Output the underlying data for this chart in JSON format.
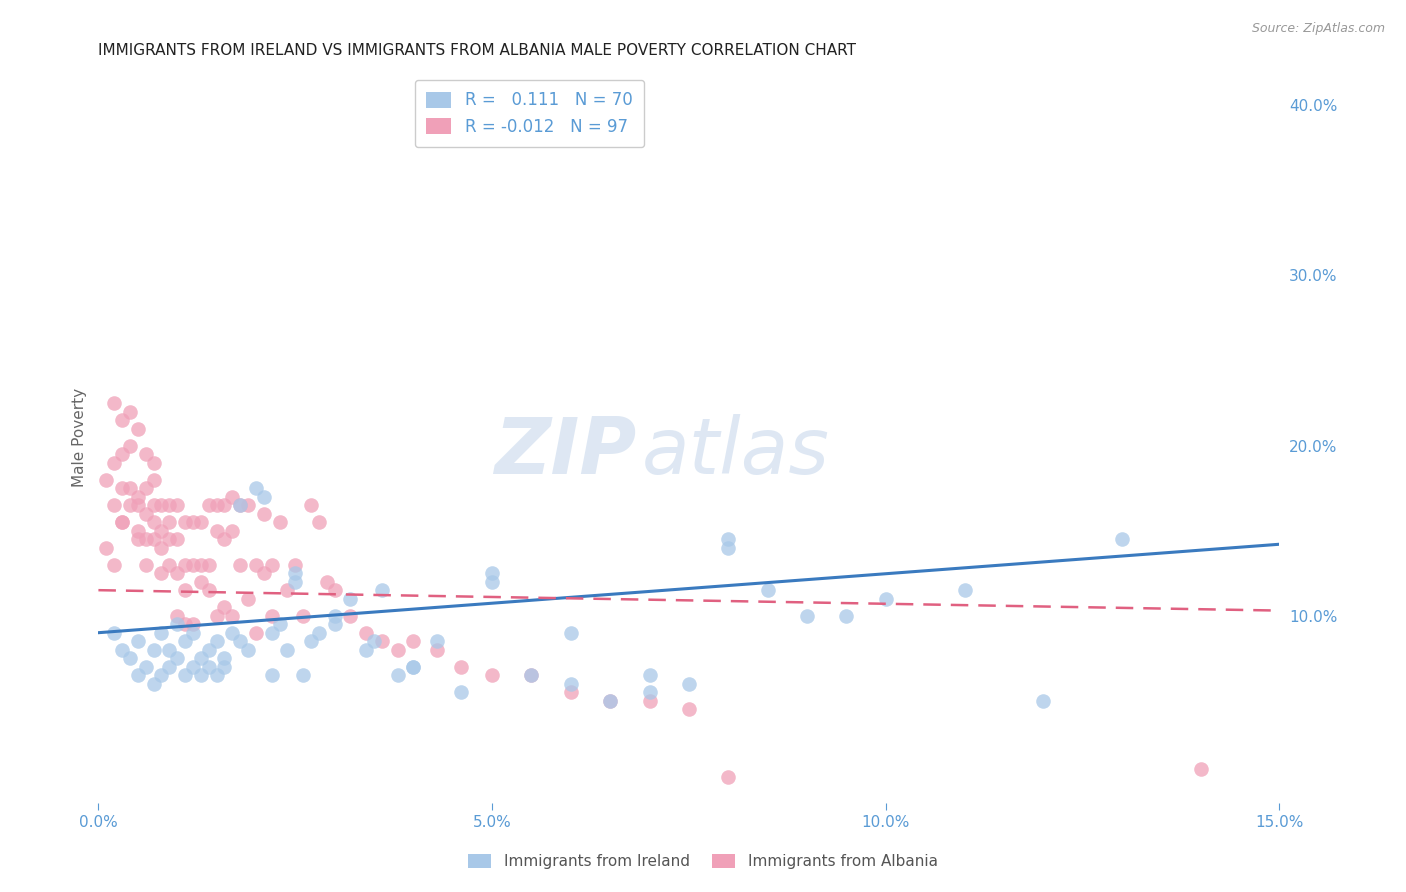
{
  "title": "IMMIGRANTS FROM IRELAND VS IMMIGRANTS FROM ALBANIA MALE POVERTY CORRELATION CHART",
  "source": "Source: ZipAtlas.com",
  "ylabel": "Male Poverty",
  "x_min": 0.0,
  "x_max": 0.15,
  "y_min": -0.01,
  "y_max": 0.42,
  "x_ticks": [
    0.0,
    0.05,
    0.1,
    0.15
  ],
  "x_tick_labels": [
    "0.0%",
    "5.0%",
    "10.0%",
    "15.0%"
  ],
  "y_ticks_right": [
    0.1,
    0.2,
    0.3,
    0.4
  ],
  "y_tick_labels_right": [
    "10.0%",
    "20.0%",
    "30.0%",
    "40.0%"
  ],
  "ireland_color": "#a8c8e8",
  "albania_color": "#f0a0b8",
  "ireland_line_color": "#3a7abf",
  "albania_line_color": "#e06080",
  "ireland_R": 0.111,
  "ireland_N": 70,
  "albania_R": -0.012,
  "albania_N": 97,
  "background_color": "#ffffff",
  "grid_color": "#cccccc",
  "title_color": "#222222",
  "axis_color": "#5a9bd5",
  "watermark_zip": "ZIP",
  "watermark_atlas": "atlas",
  "legend_ireland_label": "Immigrants from Ireland",
  "legend_albania_label": "Immigrants from Albania",
  "ireland_x": [
    0.002,
    0.003,
    0.004,
    0.005,
    0.005,
    0.006,
    0.007,
    0.007,
    0.008,
    0.008,
    0.009,
    0.009,
    0.01,
    0.01,
    0.011,
    0.011,
    0.012,
    0.012,
    0.013,
    0.013,
    0.014,
    0.014,
    0.015,
    0.015,
    0.016,
    0.016,
    0.017,
    0.018,
    0.019,
    0.02,
    0.021,
    0.022,
    0.022,
    0.023,
    0.024,
    0.025,
    0.026,
    0.027,
    0.028,
    0.03,
    0.032,
    0.034,
    0.036,
    0.038,
    0.04,
    0.043,
    0.046,
    0.05,
    0.055,
    0.06,
    0.065,
    0.07,
    0.075,
    0.08,
    0.085,
    0.09,
    0.095,
    0.1,
    0.11,
    0.12,
    0.018,
    0.025,
    0.03,
    0.035,
    0.04,
    0.05,
    0.06,
    0.07,
    0.08,
    0.13
  ],
  "ireland_y": [
    0.09,
    0.08,
    0.075,
    0.085,
    0.065,
    0.07,
    0.06,
    0.08,
    0.065,
    0.09,
    0.07,
    0.08,
    0.075,
    0.095,
    0.065,
    0.085,
    0.07,
    0.09,
    0.065,
    0.075,
    0.07,
    0.08,
    0.065,
    0.085,
    0.07,
    0.075,
    0.09,
    0.085,
    0.08,
    0.175,
    0.17,
    0.065,
    0.09,
    0.095,
    0.08,
    0.12,
    0.065,
    0.085,
    0.09,
    0.095,
    0.11,
    0.08,
    0.115,
    0.065,
    0.07,
    0.085,
    0.055,
    0.12,
    0.065,
    0.06,
    0.05,
    0.055,
    0.06,
    0.14,
    0.115,
    0.1,
    0.1,
    0.11,
    0.115,
    0.05,
    0.165,
    0.125,
    0.1,
    0.085,
    0.07,
    0.125,
    0.09,
    0.065,
    0.145,
    0.145
  ],
  "albania_x": [
    0.001,
    0.001,
    0.002,
    0.002,
    0.002,
    0.003,
    0.003,
    0.003,
    0.003,
    0.004,
    0.004,
    0.004,
    0.005,
    0.005,
    0.005,
    0.005,
    0.006,
    0.006,
    0.006,
    0.006,
    0.007,
    0.007,
    0.007,
    0.007,
    0.008,
    0.008,
    0.008,
    0.008,
    0.009,
    0.009,
    0.009,
    0.009,
    0.01,
    0.01,
    0.01,
    0.01,
    0.011,
    0.011,
    0.011,
    0.011,
    0.012,
    0.012,
    0.012,
    0.013,
    0.013,
    0.013,
    0.014,
    0.014,
    0.014,
    0.015,
    0.015,
    0.015,
    0.016,
    0.016,
    0.016,
    0.017,
    0.017,
    0.017,
    0.018,
    0.018,
    0.019,
    0.019,
    0.02,
    0.02,
    0.021,
    0.021,
    0.022,
    0.022,
    0.023,
    0.024,
    0.025,
    0.026,
    0.027,
    0.028,
    0.029,
    0.03,
    0.032,
    0.034,
    0.036,
    0.038,
    0.04,
    0.043,
    0.046,
    0.05,
    0.055,
    0.06,
    0.065,
    0.07,
    0.075,
    0.08,
    0.002,
    0.003,
    0.004,
    0.005,
    0.006,
    0.007,
    0.14
  ],
  "albania_y": [
    0.14,
    0.18,
    0.13,
    0.165,
    0.19,
    0.155,
    0.175,
    0.155,
    0.195,
    0.165,
    0.2,
    0.175,
    0.145,
    0.17,
    0.15,
    0.165,
    0.13,
    0.16,
    0.145,
    0.175,
    0.145,
    0.165,
    0.155,
    0.18,
    0.125,
    0.15,
    0.165,
    0.14,
    0.13,
    0.155,
    0.145,
    0.165,
    0.1,
    0.125,
    0.145,
    0.165,
    0.095,
    0.115,
    0.13,
    0.155,
    0.095,
    0.13,
    0.155,
    0.12,
    0.13,
    0.155,
    0.115,
    0.13,
    0.165,
    0.1,
    0.15,
    0.165,
    0.105,
    0.145,
    0.165,
    0.1,
    0.15,
    0.17,
    0.13,
    0.165,
    0.11,
    0.165,
    0.09,
    0.13,
    0.125,
    0.16,
    0.1,
    0.13,
    0.155,
    0.115,
    0.13,
    0.1,
    0.165,
    0.155,
    0.12,
    0.115,
    0.1,
    0.09,
    0.085,
    0.08,
    0.085,
    0.08,
    0.07,
    0.065,
    0.065,
    0.055,
    0.05,
    0.05,
    0.045,
    0.005,
    0.225,
    0.215,
    0.22,
    0.21,
    0.195,
    0.19,
    0.01
  ]
}
